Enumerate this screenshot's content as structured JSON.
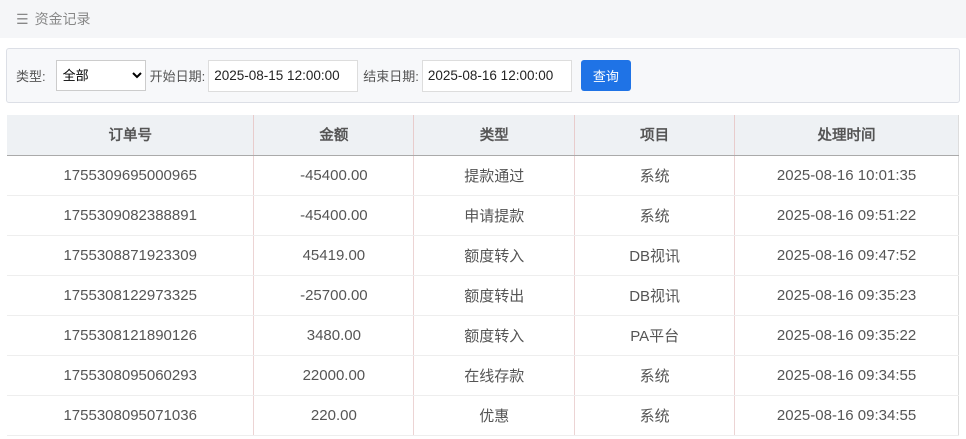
{
  "header": {
    "menu_icon": "hamburger-icon",
    "title": "资金记录"
  },
  "filter": {
    "type_label": "类型:",
    "type_value": "全部",
    "start_label": "开始日期:",
    "start_value": "2025-08-15 12:00:00",
    "end_label": "结束日期:",
    "end_value": "2025-08-16 12:00:00",
    "query_label": "查询",
    "accent": "#1f73e6"
  },
  "table": {
    "columns": [
      "订单号",
      "金额",
      "类型",
      "项目",
      "处理时间"
    ],
    "rows": [
      [
        "1755309695000965",
        "-45400.00",
        "提款通过",
        "系统",
        "2025-08-16 10:01:35"
      ],
      [
        "1755309082388891",
        "-45400.00",
        "申请提款",
        "系统",
        "2025-08-16 09:51:22"
      ],
      [
        "1755308871923309",
        "45419.00",
        "额度转入",
        "DB视讯",
        "2025-08-16 09:47:52"
      ],
      [
        "1755308122973325",
        "-25700.00",
        "额度转出",
        "DB视讯",
        "2025-08-16 09:35:23"
      ],
      [
        "1755308121890126",
        "3480.00",
        "额度转入",
        "PA平台",
        "2025-08-16 09:35:22"
      ],
      [
        "1755308095060293",
        "22000.00",
        "在线存款",
        "系统",
        "2025-08-16 09:34:55"
      ],
      [
        "1755308095071036",
        "220.00",
        "优惠",
        "系统",
        "2025-08-16 09:34:55"
      ]
    ]
  }
}
